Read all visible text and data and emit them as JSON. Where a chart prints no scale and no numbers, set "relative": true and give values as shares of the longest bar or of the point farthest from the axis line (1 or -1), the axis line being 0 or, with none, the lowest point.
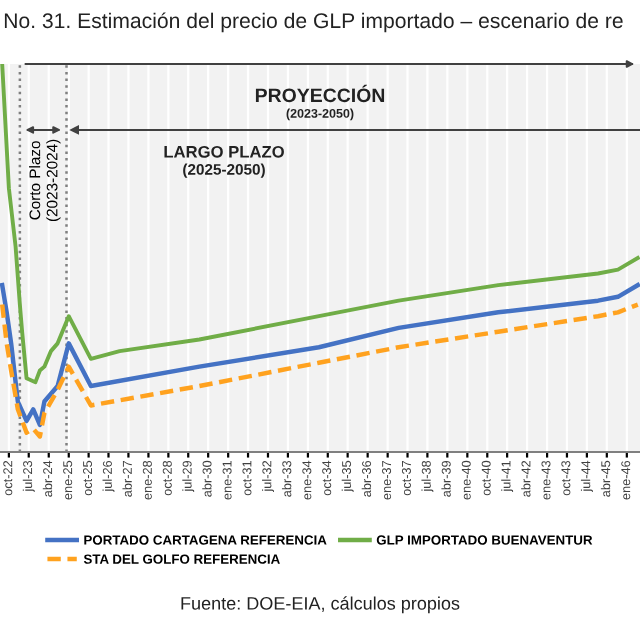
{
  "chart_data": {
    "type": "line",
    "relative": true,
    "title": "No. 31. Estimación del precio de GLP importado – escenario de re",
    "annotations": [
      "PROYECCIÓN",
      "(2023-2050)",
      "Corto Plazo",
      "(2023-2024)",
      "LARGO PLAZO",
      "(2025-2050)",
      "Fuente: DOE-EIA, cálculos propios"
    ],
    "series": [
      {
        "name": "PORTADO CARTAGENA REFERENCIA",
        "color": "#4472c4",
        "line_style": "solid",
        "x": [
          "2022-07",
          "2022-09",
          "2022-11",
          "2023-02",
          "2023-06",
          "2023-09",
          "2023-12",
          "2024-02",
          "2024-08",
          "2025-01",
          "2025-11",
          "2029-12",
          "2034-06",
          "2037-06",
          "2041-03",
          "2044-12",
          "2045-09",
          "2046-06"
        ],
        "values": [
          0.43,
          0.36,
          0.28,
          0.13,
          0.08,
          0.11,
          0.07,
          0.13,
          0.17,
          0.28,
          0.17,
          0.22,
          0.27,
          0.32,
          0.36,
          0.39,
          0.4,
          0.43
        ]
      },
      {
        "name": "STA DEL GOLFO REFERENCIA",
        "color": "#ffa21f",
        "line_style": "dashed",
        "x": [
          "2022-07",
          "2022-09",
          "2022-11",
          "2023-02",
          "2023-06",
          "2023-09",
          "2023-12",
          "2024-02",
          "2024-08",
          "2025-01",
          "2025-11",
          "2029-12",
          "2034-06",
          "2037-06",
          "2041-03",
          "2044-12",
          "2045-09",
          "2046-06"
        ],
        "values": [
          0.38,
          0.28,
          0.21,
          0.11,
          0.05,
          0.06,
          0.04,
          0.1,
          0.16,
          0.22,
          0.12,
          0.17,
          0.23,
          0.27,
          0.31,
          0.35,
          0.36,
          0.38
        ]
      },
      {
        "name": "GLP IMPORTADO BUENAVENTUR",
        "color": "#70ad47",
        "line_style": "solid",
        "x": [
          "2022-07",
          "2022-10",
          "2023-01",
          "2023-03",
          "2023-04",
          "2023-06",
          "2023-10",
          "2023-12",
          "2024-02",
          "2024-05",
          "2024-08",
          "2025-01",
          "2025-11",
          "2026-12",
          "2029-12",
          "2034-06",
          "2037-06",
          "2041-03",
          "2044-12",
          "2045-09",
          "2046-06"
        ],
        "values": [
          1.0,
          0.68,
          0.53,
          0.38,
          0.31,
          0.19,
          0.18,
          0.21,
          0.22,
          0.26,
          0.28,
          0.35,
          0.24,
          0.26,
          0.29,
          0.35,
          0.39,
          0.43,
          0.46,
          0.47,
          0.5
        ]
      }
    ],
    "xlim": [
      "2022-06",
      "2046-07"
    ],
    "xticks": [
      {
        "value": "2022-10",
        "label": "oct-22"
      },
      {
        "value": "2023-07",
        "label": "jul-23"
      },
      {
        "value": "2024-04",
        "label": "abr-24"
      },
      {
        "value": "2025-01",
        "label": "ene-25"
      },
      {
        "value": "2025-10",
        "label": "oct-25"
      },
      {
        "value": "2026-07",
        "label": "jul-26"
      },
      {
        "value": "2027-04",
        "label": "abr-27"
      },
      {
        "value": "2028-01",
        "label": "ene-28"
      },
      {
        "value": "2028-10",
        "label": "oct-28"
      },
      {
        "value": "2029-07",
        "label": "jul-29"
      },
      {
        "value": "2030-04",
        "label": "abr-30"
      },
      {
        "value": "2031-01",
        "label": "ene-31"
      },
      {
        "value": "2031-10",
        "label": "oct-31"
      },
      {
        "value": "2032-07",
        "label": "jul-32"
      },
      {
        "value": "2033-04",
        "label": "abr-33"
      },
      {
        "value": "2034-01",
        "label": "ene-34"
      },
      {
        "value": "2034-10",
        "label": "oct-34"
      },
      {
        "value": "2035-07",
        "label": "jul-35"
      },
      {
        "value": "2036-04",
        "label": "abr-36"
      },
      {
        "value": "2037-01",
        "label": "ene-37"
      },
      {
        "value": "2037-10",
        "label": "oct-37"
      },
      {
        "value": "2038-07",
        "label": "jul-38"
      },
      {
        "value": "2039-04",
        "label": "abr-39"
      },
      {
        "value": "2040-01",
        "label": "ene-40"
      },
      {
        "value": "2040-10",
        "label": "oct-40"
      },
      {
        "value": "2041-07",
        "label": "jul-41"
      },
      {
        "value": "2042-04",
        "label": "abr-42"
      },
      {
        "value": "2043-01",
        "label": "ene-43"
      },
      {
        "value": "2043-10",
        "label": "oct-43"
      },
      {
        "value": "2044-07",
        "label": "jul-44"
      },
      {
        "value": "2045-04",
        "label": "abr-45"
      },
      {
        "value": "2046-01",
        "label": "ene-46"
      }
    ],
    "ref_lines": [
      {
        "axis": "x",
        "value": "2023-03",
        "color": "#808080",
        "line_style": "dotted"
      },
      {
        "axis": "x",
        "value": "2024-12",
        "color": "#808080",
        "line_style": "dotted"
      }
    ],
    "grid": true,
    "legend": "bottom",
    "tick_labels": "x",
    "marker": "none"
  }
}
